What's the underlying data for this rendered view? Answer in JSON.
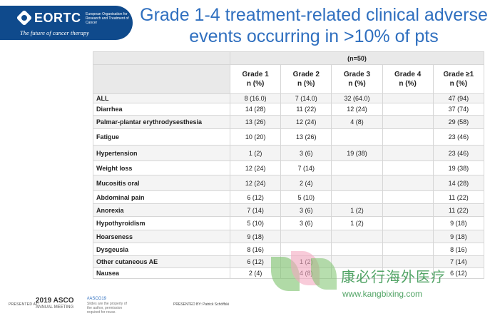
{
  "header": {
    "logo_name": "EORTC",
    "logo_sub": "European Organisation for Research and Treatment of Cancer",
    "logo_tagline": "The future of cancer therapy",
    "title": "Grade 1-4 treatment-related clinical adverse events occurring in >10% of pts"
  },
  "table": {
    "group_label": "(n=50)",
    "columns": [
      {
        "label": "Grade 1",
        "unit": "n (%)"
      },
      {
        "label": "Grade 2",
        "unit": "n (%)"
      },
      {
        "label": "Grade 3",
        "unit": "n (%)"
      },
      {
        "label": "Grade 4",
        "unit": "n (%)"
      },
      {
        "label": "Grade ≥1",
        "unit": "n (%)"
      }
    ],
    "rows": [
      {
        "ae": "ALL",
        "values": [
          "8 (16.0)",
          "7 (14.0)",
          "32 (64.0)",
          "",
          "47 (94)"
        ]
      },
      {
        "ae": "Diarrhea",
        "values": [
          "14 (28)",
          "11 (22)",
          "12 (24)",
          "",
          "37 (74)"
        ]
      },
      {
        "ae": "Palmar-plantar erythrodysesthesia",
        "values": [
          "13 (26)",
          "12 (24)",
          "4 (8)",
          "",
          "29 (58)"
        ]
      },
      {
        "ae": "Fatigue",
        "values": [
          "10 (20)",
          "13 (26)",
          "",
          "",
          "23 (46)"
        ]
      },
      {
        "ae": "Hypertension",
        "values": [
          "1 (2)",
          "3 (6)",
          "19 (38)",
          "",
          "23 (46)"
        ]
      },
      {
        "ae": "Weight loss",
        "values": [
          "12 (24)",
          "7 (14)",
          "",
          "",
          "19 (38)"
        ]
      },
      {
        "ae": "Mucositis oral",
        "values": [
          "12 (24)",
          "2 (4)",
          "",
          "",
          "14 (28)"
        ]
      },
      {
        "ae": "Abdominal pain",
        "values": [
          "6 (12)",
          "5 (10)",
          "",
          "",
          "11 (22)"
        ]
      },
      {
        "ae": "Anorexia",
        "values": [
          "7 (14)",
          "3 (6)",
          "1 (2)",
          "",
          "11 (22)"
        ]
      },
      {
        "ae": "Hypothyroidism",
        "values": [
          "5 (10)",
          "3 (6)",
          "1 (2)",
          "",
          "9 (18)"
        ]
      },
      {
        "ae": "Hoarseness",
        "values": [
          "9 (18)",
          "",
          "",
          "",
          "9 (18)"
        ]
      },
      {
        "ae": "Dysgeusia",
        "values": [
          "8 (16)",
          "",
          "",
          "",
          "8 (16)"
        ]
      },
      {
        "ae": "Other cutaneous AE",
        "values": [
          "6 (12)",
          "1 (2)",
          "",
          "",
          "7 (14)"
        ]
      },
      {
        "ae": "Nausea",
        "values": [
          "2 (4)",
          "4 (8)",
          "",
          "",
          "6 (12)"
        ]
      }
    ]
  },
  "footer": {
    "presented_at": "PRESENTED AT:",
    "asco_title": "2019 ASCO",
    "asco_sub": "ANNUAL MEETING",
    "hashtag": "#ASCO19",
    "note": "Slides are the property of the author, permission required for reuse.",
    "presented_by": "PRESENTED BY: Patrick Schöffski"
  },
  "watermark": {
    "text": "康必行海外医疗",
    "url": "www.kangbixing.com"
  },
  "colors": {
    "brand_blue": "#0f4a8c",
    "title_blue": "#2f6fbf",
    "watermark_green": "#3f9a55"
  }
}
